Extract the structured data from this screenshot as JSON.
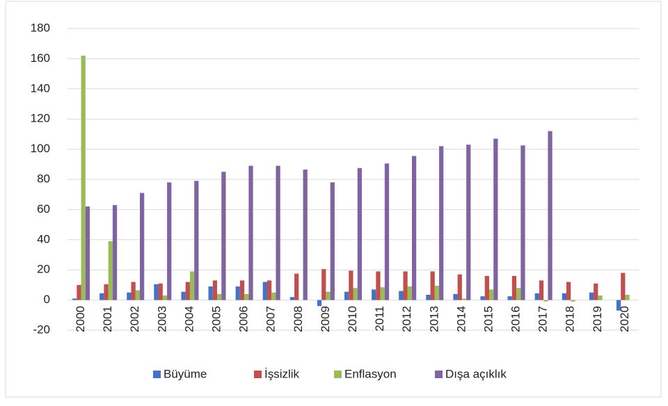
{
  "chart_data": {
    "type": "bar",
    "categories": [
      "2000",
      "2001",
      "2002",
      "2003",
      "2004",
      "2005",
      "2006",
      "2007",
      "2008",
      "2009",
      "2010",
      "2011",
      "2012",
      "2013",
      "2014",
      "2015",
      "2016",
      "2017",
      "2018",
      "2019",
      "2020"
    ],
    "series": [
      {
        "name": "Büyüme",
        "color": "#4472c4",
        "values": [
          1,
          4.5,
          5,
          10.5,
          5.5,
          9,
          9,
          12,
          2,
          -4,
          5.5,
          7,
          6,
          3.5,
          4,
          2.5,
          2.5,
          4.5,
          4.5,
          5,
          -7
        ]
      },
      {
        "name": "İşsizlik",
        "color": "#c0504d",
        "values": [
          10,
          10.5,
          12,
          11,
          12,
          13,
          13,
          13,
          17.5,
          20.5,
          19.5,
          19,
          19,
          19,
          17,
          16,
          16,
          13,
          12,
          11,
          18
        ]
      },
      {
        "name": "Enflasyon",
        "color": "#9bbb59",
        "values": [
          162,
          39,
          6.5,
          3,
          19,
          4,
          4,
          5,
          0,
          5.5,
          8,
          8.5,
          9,
          9.5,
          1,
          7,
          8,
          -1,
          -1,
          3,
          3.5
        ]
      },
      {
        "name": "Dışa açıklık",
        "color": "#8064a2",
        "values": [
          62,
          63,
          71,
          78,
          79,
          85,
          89,
          89,
          86.5,
          78,
          87.5,
          90.5,
          95.5,
          102,
          103,
          107,
          102.5,
          112,
          null,
          null,
          null
        ]
      }
    ],
    "ylim": [
      -20,
      180
    ],
    "yticks": [
      -20,
      0,
      20,
      40,
      60,
      80,
      100,
      120,
      140,
      160,
      180
    ],
    "grid": true,
    "legend": "bottom"
  }
}
